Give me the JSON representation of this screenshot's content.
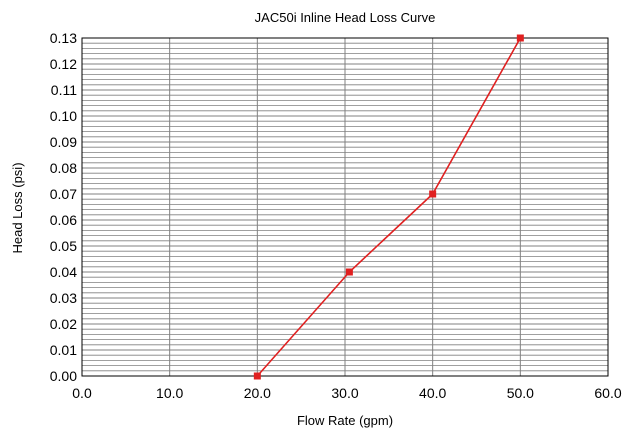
{
  "chart_data": {
    "type": "line",
    "title": "JAC50i Inline Head Loss Curve",
    "xlabel": "Flow Rate (gpm)",
    "ylabel": "Head Loss (psi)",
    "xlim": [
      0,
      60
    ],
    "ylim": [
      0,
      0.13
    ],
    "x_ticks": [
      "0.0",
      "10.0",
      "20.0",
      "30.0",
      "40.0",
      "50.0",
      "60.0"
    ],
    "y_ticks": [
      "0.00",
      "0.01",
      "0.02",
      "0.03",
      "0.04",
      "0.05",
      "0.06",
      "0.07",
      "0.08",
      "0.09",
      "0.10",
      "0.11",
      "0.12",
      "0.13"
    ],
    "series": [
      {
        "x": [
          20,
          30.5,
          40,
          50
        ],
        "y": [
          0.0,
          0.04,
          0.07,
          0.13
        ],
        "color": "#e02020"
      }
    ],
    "grid": true,
    "legend": "none",
    "plot_background": "#ffffff",
    "gridline_color": "#808080"
  }
}
